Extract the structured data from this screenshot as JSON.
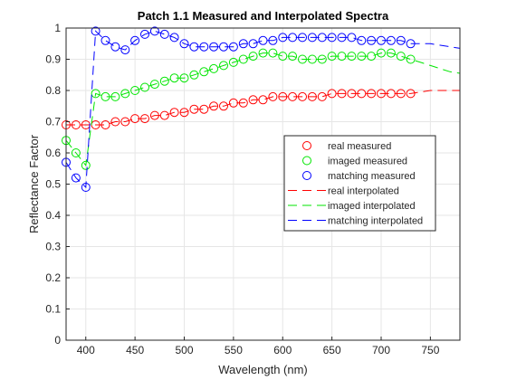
{
  "chart_data": {
    "type": "line",
    "title": "Patch 1.1 Measured and Interpolated Spectra",
    "xlabel": "Wavelength (nm)",
    "ylabel": "Reflectance Factor",
    "xlim": [
      380,
      780
    ],
    "ylim": [
      0,
      1
    ],
    "xticks": [
      400,
      450,
      500,
      550,
      600,
      650,
      700,
      750
    ],
    "xtick_labels": [
      "400",
      "450",
      "500",
      "550",
      "600",
      "650",
      "700",
      "750"
    ],
    "yticks": [
      0,
      0.1,
      0.2,
      0.3,
      0.4,
      0.5,
      0.6,
      0.7,
      0.8,
      0.9,
      1
    ],
    "ytick_labels": [
      "0",
      "0.1",
      "0.2",
      "0.3",
      "0.4",
      "0.5",
      "0.6",
      "0.7",
      "0.8",
      "0.9",
      "1"
    ],
    "grid": true,
    "legend_position": "right",
    "colors": {
      "real": "#ff0000",
      "imaged": "#00e600",
      "matching": "#0000ff"
    },
    "measured_x": [
      380,
      390,
      400,
      410,
      420,
      430,
      440,
      450,
      460,
      470,
      480,
      490,
      500,
      510,
      520,
      530,
      540,
      550,
      560,
      570,
      580,
      590,
      600,
      610,
      620,
      630,
      640,
      650,
      660,
      670,
      680,
      690,
      700,
      710,
      720,
      730
    ],
    "interpolated_x": [
      380,
      390,
      400,
      410,
      420,
      430,
      440,
      450,
      460,
      470,
      480,
      490,
      500,
      510,
      520,
      530,
      540,
      550,
      560,
      570,
      580,
      590,
      600,
      610,
      620,
      630,
      640,
      650,
      660,
      670,
      680,
      690,
      700,
      710,
      720,
      730,
      740,
      750,
      760,
      770,
      780
    ],
    "series": [
      {
        "name": "real measured",
        "key": "real",
        "style": "markers",
        "values": [
          0.69,
          0.69,
          0.69,
          0.69,
          0.69,
          0.7,
          0.7,
          0.71,
          0.71,
          0.72,
          0.72,
          0.73,
          0.73,
          0.74,
          0.74,
          0.75,
          0.75,
          0.76,
          0.76,
          0.77,
          0.77,
          0.78,
          0.78,
          0.78,
          0.78,
          0.78,
          0.78,
          0.79,
          0.79,
          0.79,
          0.79,
          0.79,
          0.79,
          0.79,
          0.79,
          0.79
        ]
      },
      {
        "name": "imaged measured",
        "key": "imaged",
        "style": "markers",
        "values": [
          0.64,
          0.6,
          0.56,
          0.79,
          0.78,
          0.78,
          0.79,
          0.8,
          0.81,
          0.82,
          0.83,
          0.84,
          0.84,
          0.85,
          0.86,
          0.87,
          0.88,
          0.89,
          0.9,
          0.91,
          0.92,
          0.92,
          0.91,
          0.91,
          0.9,
          0.9,
          0.9,
          0.91,
          0.91,
          0.91,
          0.91,
          0.91,
          0.92,
          0.92,
          0.91,
          0.9
        ]
      },
      {
        "name": "matching measured",
        "key": "matching",
        "style": "markers",
        "values": [
          0.57,
          0.52,
          0.49,
          0.99,
          0.96,
          0.94,
          0.93,
          0.96,
          0.98,
          0.99,
          0.98,
          0.97,
          0.95,
          0.94,
          0.94,
          0.94,
          0.94,
          0.94,
          0.95,
          0.95,
          0.96,
          0.96,
          0.97,
          0.97,
          0.97,
          0.97,
          0.97,
          0.97,
          0.97,
          0.97,
          0.96,
          0.96,
          0.96,
          0.96,
          0.96,
          0.95
        ]
      },
      {
        "name": "real interpolated",
        "key": "real",
        "style": "dash",
        "values": [
          0.69,
          0.69,
          0.69,
          0.69,
          0.69,
          0.7,
          0.7,
          0.71,
          0.71,
          0.72,
          0.72,
          0.73,
          0.73,
          0.74,
          0.74,
          0.75,
          0.75,
          0.76,
          0.76,
          0.77,
          0.77,
          0.78,
          0.78,
          0.78,
          0.78,
          0.78,
          0.78,
          0.79,
          0.79,
          0.79,
          0.79,
          0.79,
          0.79,
          0.79,
          0.79,
          0.79,
          0.795,
          0.8,
          0.8,
          0.8,
          0.8
        ]
      },
      {
        "name": "imaged interpolated",
        "key": "imaged",
        "style": "dash",
        "values": [
          0.64,
          0.6,
          0.56,
          0.79,
          0.78,
          0.78,
          0.79,
          0.8,
          0.81,
          0.82,
          0.83,
          0.84,
          0.84,
          0.85,
          0.86,
          0.87,
          0.88,
          0.89,
          0.9,
          0.91,
          0.92,
          0.92,
          0.91,
          0.91,
          0.9,
          0.9,
          0.9,
          0.91,
          0.91,
          0.91,
          0.91,
          0.91,
          0.92,
          0.92,
          0.91,
          0.9,
          0.89,
          0.88,
          0.87,
          0.86,
          0.855
        ]
      },
      {
        "name": "matching interpolated",
        "key": "matching",
        "style": "dash",
        "values": [
          0.57,
          0.52,
          0.49,
          0.99,
          0.96,
          0.94,
          0.93,
          0.96,
          0.98,
          0.99,
          0.98,
          0.97,
          0.95,
          0.94,
          0.94,
          0.94,
          0.94,
          0.94,
          0.95,
          0.95,
          0.96,
          0.96,
          0.97,
          0.97,
          0.97,
          0.97,
          0.97,
          0.97,
          0.97,
          0.97,
          0.96,
          0.96,
          0.96,
          0.96,
          0.96,
          0.95,
          0.95,
          0.95,
          0.945,
          0.94,
          0.935
        ]
      }
    ]
  }
}
